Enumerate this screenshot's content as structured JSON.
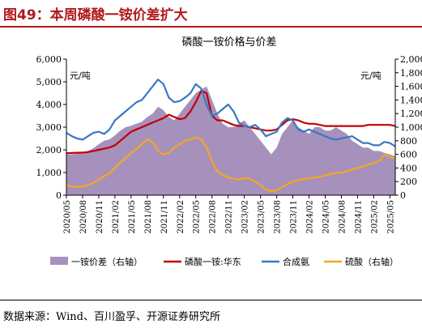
{
  "figure": {
    "caption": "图49：本周磷酸一铵价差扩大",
    "source": "数据来源：Wind、百川盈孚、开源证券研究所"
  },
  "colors": {
    "title": "#b2191c",
    "spread_fill": "#a691bd",
    "map": "#c00000",
    "ammonia": "#3a78c3",
    "sulfuric": "#f5a623"
  },
  "chart_data": {
    "type": "line",
    "title": "磷酸一铵价格与价差",
    "xlabel": "",
    "ylabel_left": "元/吨",
    "ylabel_right": "元/吨",
    "ylim_left": [
      0,
      6000
    ],
    "ylim_right": [
      0,
      2000
    ],
    "yticks_left": [
      "0",
      "1,000",
      "2,000",
      "3,000",
      "4,000",
      "5,000",
      "6,000"
    ],
    "yticks_right": [
      "0",
      "200",
      "400",
      "600",
      "800",
      "1,000",
      "1,200",
      "1,400",
      "1,600",
      "1,800",
      "2,000"
    ],
    "grid": false,
    "legend_position": "bottom",
    "x": [
      "2020-05",
      "2020-06",
      "2020-07",
      "2020-08",
      "2020-09",
      "2020-10",
      "2020-11",
      "2020-12",
      "2021-01",
      "2021-02",
      "2021-03",
      "2021-04",
      "2021-05",
      "2021-06",
      "2021-07",
      "2021-08",
      "2021-09",
      "2021-10",
      "2021-11",
      "2021-12",
      "2022-01",
      "2022-02",
      "2022-03",
      "2022-04",
      "2022-05",
      "2022-06",
      "2022-07",
      "2022-08",
      "2022-09",
      "2022-10",
      "2022-11",
      "2022-12",
      "2023-01",
      "2023-02",
      "2023-03",
      "2023-04",
      "2023-05",
      "2023-06",
      "2023-07",
      "2023-08",
      "2023-09",
      "2023-10",
      "2023-11",
      "2023-12",
      "2024-01",
      "2024-02",
      "2024-03",
      "2024-04",
      "2024-05",
      "2024-06",
      "2024-07",
      "2024-08",
      "2024-09",
      "2024-10",
      "2024-11",
      "2024-12",
      "2025-01",
      "2025-02",
      "2025-03",
      "2025-04",
      "2025-05",
      "2025-06"
    ],
    "xticks": [
      "2020/05",
      "2020/08",
      "2020/11",
      "2021/02",
      "2021/05",
      "2021/08",
      "2021/11",
      "2022/02",
      "2022/05",
      "2022/08",
      "2022/11",
      "2023/02",
      "2023/05",
      "2023/08",
      "2023/11",
      "2024/02",
      "2024/05",
      "2024/08",
      "2024/11",
      "2025/02",
      "2025/05"
    ],
    "series": [
      {
        "name": "一铵价差（右轴）",
        "type": "area",
        "axis": "right",
        "values": [
          600,
          600,
          610,
          630,
          650,
          690,
          750,
          800,
          820,
          880,
          950,
          1000,
          1020,
          1050,
          1080,
          1150,
          1200,
          1300,
          1250,
          1150,
          1100,
          1200,
          1300,
          1400,
          1500,
          1550,
          1600,
          1400,
          1200,
          1050,
          1000,
          1000,
          1050,
          1100,
          1000,
          900,
          800,
          700,
          600,
          700,
          900,
          1000,
          1100,
          1000,
          950,
          900,
          1000,
          1000,
          950,
          950,
          1000,
          950,
          900,
          800,
          750,
          700,
          700,
          650,
          650,
          620,
          600,
          570
        ]
      },
      {
        "name": "磷酸一铵:华东",
        "type": "line",
        "axis": "left",
        "values": [
          1850,
          1860,
          1870,
          1880,
          1900,
          1950,
          2000,
          2050,
          2100,
          2200,
          2400,
          2600,
          2800,
          2900,
          3000,
          3100,
          3200,
          3300,
          3400,
          3550,
          3450,
          3350,
          3400,
          3700,
          4100,
          4600,
          4500,
          3500,
          3300,
          3300,
          3200,
          3100,
          3050,
          3050,
          3000,
          2950,
          2900,
          2850,
          2850,
          2900,
          3100,
          3300,
          3350,
          3300,
          3200,
          3150,
          3150,
          3100,
          3050,
          3050,
          3050,
          3050,
          3050,
          3050,
          3050,
          3050,
          3100,
          3100,
          3100,
          3100,
          3100,
          3050
        ]
      },
      {
        "name": "合成氨",
        "type": "line",
        "axis": "left",
        "values": [
          2750,
          2600,
          2500,
          2450,
          2600,
          2750,
          2800,
          2700,
          2900,
          3300,
          3500,
          3700,
          3900,
          4100,
          4200,
          4500,
          4800,
          5100,
          4900,
          4300,
          4100,
          4150,
          4300,
          4500,
          4900,
          4700,
          4000,
          3500,
          3600,
          3800,
          4000,
          3700,
          3200,
          3050,
          3000,
          3100,
          2900,
          2600,
          2700,
          2800,
          3200,
          3400,
          3300,
          2900,
          2800,
          2900,
          2800,
          2700,
          2600,
          2500,
          2450,
          2500,
          2550,
          2600,
          2450,
          2300,
          2300,
          2200,
          2200,
          2350,
          2300,
          2150
        ]
      },
      {
        "name": "硫酸（右轴）",
        "type": "line",
        "axis": "right",
        "values": [
          150,
          130,
          120,
          130,
          150,
          180,
          230,
          280,
          320,
          400,
          480,
          550,
          620,
          680,
          750,
          820,
          780,
          650,
          600,
          620,
          700,
          750,
          800,
          820,
          850,
          820,
          700,
          500,
          350,
          300,
          260,
          240,
          230,
          250,
          240,
          200,
          150,
          80,
          60,
          70,
          120,
          160,
          200,
          220,
          240,
          250,
          260,
          270,
          290,
          310,
          330,
          330,
          350,
          380,
          400,
          420,
          450,
          470,
          500,
          600,
          560,
          540
        ]
      }
    ]
  }
}
